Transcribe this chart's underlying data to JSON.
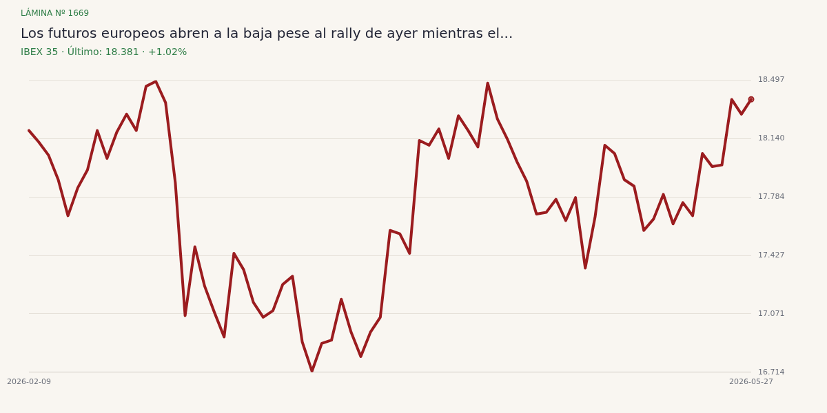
{
  "chart_data": {
    "type": "line",
    "title": "Los futuros europeos abren a la baja pese al rally de ayer mientras el...",
    "subtitle": "IBEX 35 · Último: 18.381 · +1.02%",
    "annotations": [
      "LÁMINA Nº 1669"
    ],
    "categories": [
      "2026-02-09",
      null,
      null,
      null,
      null,
      null,
      null,
      null,
      null,
      null,
      null,
      null,
      null,
      null,
      null,
      null,
      null,
      null,
      null,
      null,
      null,
      null,
      null,
      null,
      null,
      null,
      null,
      null,
      null,
      null,
      null,
      null,
      null,
      null,
      null,
      null,
      null,
      null,
      null,
      null,
      null,
      null,
      null,
      null,
      null,
      null,
      null,
      null,
      null,
      null,
      null,
      null,
      null,
      null,
      null,
      null,
      null,
      null,
      null,
      null,
      null,
      null,
      null,
      null,
      null,
      null,
      null,
      null,
      null,
      null,
      null,
      null,
      null,
      null,
      "2026-05-27"
    ],
    "series": [
      {
        "color": "#9b1c1f",
        "values": [
          18.19,
          18.12,
          18.04,
          17.89,
          17.67,
          17.84,
          17.95,
          18.19,
          18.02,
          18.18,
          18.29,
          18.19,
          18.46,
          18.49,
          18.36,
          17.87,
          17.06,
          17.48,
          17.24,
          17.08,
          16.93,
          17.44,
          17.34,
          17.14,
          17.05,
          17.09,
          17.25,
          17.3,
          16.9,
          16.72,
          16.89,
          16.91,
          17.16,
          16.96,
          16.81,
          16.96,
          17.05,
          17.58,
          17.56,
          17.44,
          18.13,
          18.1,
          18.2,
          18.02,
          18.28,
          18.19,
          18.09,
          18.48,
          18.26,
          18.14,
          18.0,
          17.88,
          17.68,
          17.69,
          17.77,
          17.64,
          17.78,
          17.35,
          17.66,
          18.1,
          18.05,
          17.89,
          17.85,
          17.58,
          17.65,
          17.8,
          17.62,
          17.75,
          17.67,
          18.05,
          17.97,
          17.98,
          18.38,
          18.29,
          18.381
        ]
      },
      {
        "type": "scatter",
        "marker": "circle",
        "color": "#9b1c1f",
        "values": [
          null,
          null,
          null,
          null,
          null,
          null,
          null,
          null,
          null,
          null,
          null,
          null,
          null,
          null,
          null,
          null,
          null,
          null,
          null,
          null,
          null,
          null,
          null,
          null,
          null,
          null,
          null,
          null,
          null,
          null,
          null,
          null,
          null,
          null,
          null,
          null,
          null,
          null,
          null,
          null,
          null,
          null,
          null,
          null,
          null,
          null,
          null,
          null,
          null,
          null,
          null,
          null,
          null,
          null,
          null,
          null,
          null,
          null,
          null,
          null,
          null,
          null,
          null,
          null,
          null,
          null,
          null,
          null,
          null,
          null,
          null,
          null,
          null,
          null,
          18.381
        ]
      }
    ],
    "ylim": [
      16.714,
      18.497
    ],
    "yticks": [
      18.497,
      {
        "value": 18.14,
        "label": "18.140"
      },
      17.784,
      17.427,
      17.071,
      16.714
    ],
    "grid": "y",
    "legend": false,
    "line_style": "solid"
  }
}
